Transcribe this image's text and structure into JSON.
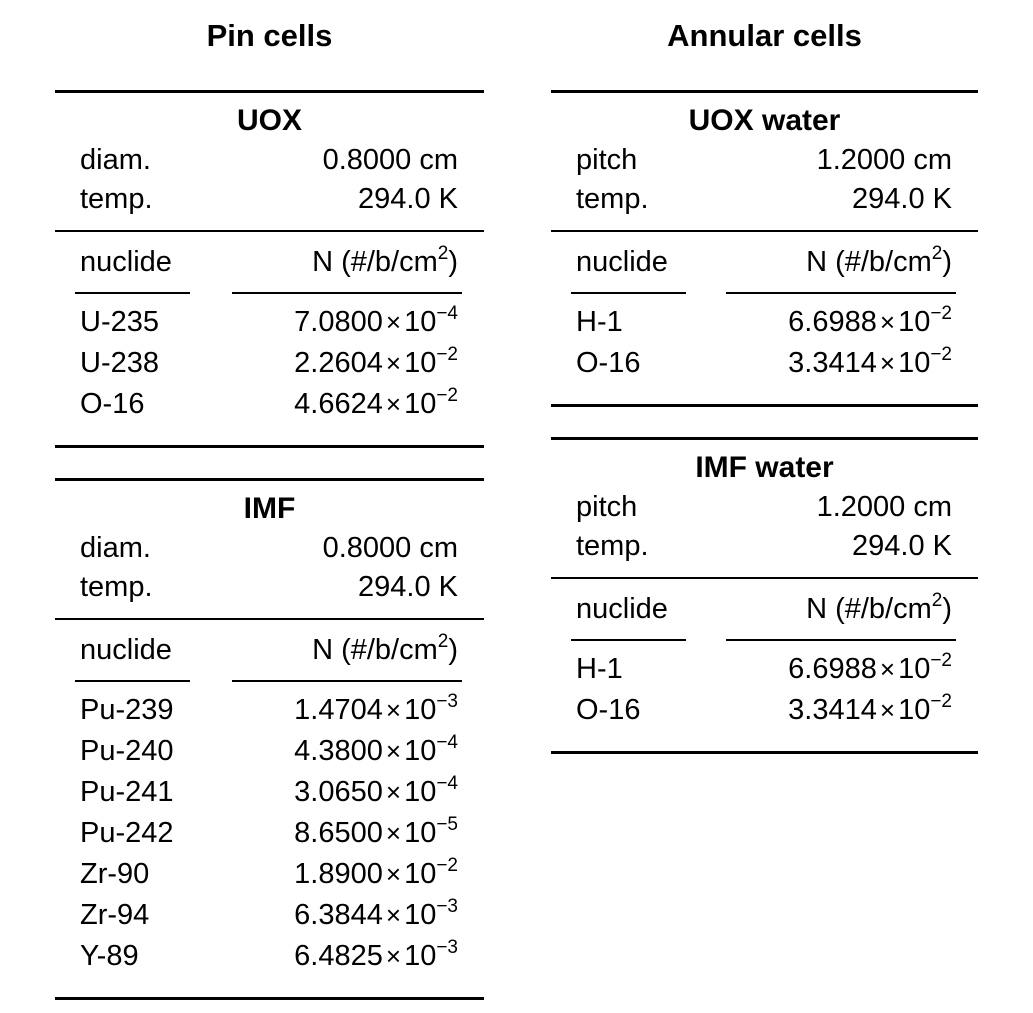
{
  "columns": {
    "left_title": "Pin cells",
    "right_title": "Annular cells"
  },
  "tables": {
    "uox": {
      "title": "UOX",
      "param1_label": "diam.",
      "param1_value": "0.8000 cm",
      "param2_label": "temp.",
      "param2_value": "294.0 K",
      "col_nuclide": "nuclide",
      "col_n": "N (#/b/cm",
      "col_n_exp": "2",
      "col_n_close": ")",
      "rows": [
        {
          "nuclide": "U-235",
          "mant": "7.0800",
          "exp": "−4"
        },
        {
          "nuclide": "U-238",
          "mant": "2.2604",
          "exp": "−2"
        },
        {
          "nuclide": "O-16",
          "mant": "4.6624",
          "exp": "−2"
        }
      ]
    },
    "imf": {
      "title": "IMF",
      "param1_label": "diam.",
      "param1_value": "0.8000 cm",
      "param2_label": "temp.",
      "param2_value": "294.0 K",
      "col_nuclide": "nuclide",
      "col_n": "N (#/b/cm",
      "col_n_exp": "2",
      "col_n_close": ")",
      "rows": [
        {
          "nuclide": "Pu-239",
          "mant": "1.4704",
          "exp": "−3"
        },
        {
          "nuclide": "Pu-240",
          "mant": "4.3800",
          "exp": "−4"
        },
        {
          "nuclide": "Pu-241",
          "mant": "3.0650",
          "exp": "−4"
        },
        {
          "nuclide": "Pu-242",
          "mant": "8.6500",
          "exp": "−5"
        },
        {
          "nuclide": "Zr-90",
          "mant": "1.8900",
          "exp": "−2"
        },
        {
          "nuclide": "Zr-94",
          "mant": "6.3844",
          "exp": "−3"
        },
        {
          "nuclide": "Y-89",
          "mant": "6.4825",
          "exp": "−3"
        }
      ]
    },
    "uox_water": {
      "title": "UOX water",
      "param1_label": "pitch",
      "param1_value": "1.2000 cm",
      "param2_label": "temp.",
      "param2_value": "294.0 K",
      "col_nuclide": "nuclide",
      "col_n": "N (#/b/cm",
      "col_n_exp": "2",
      "col_n_close": ")",
      "rows": [
        {
          "nuclide": "H-1",
          "mant": "6.6988",
          "exp": "−2"
        },
        {
          "nuclide": "O-16",
          "mant": "3.3414",
          "exp": "−2"
        }
      ]
    },
    "imf_water": {
      "title": "IMF water",
      "param1_label": "pitch",
      "param1_value": "1.2000 cm",
      "param2_label": "temp.",
      "param2_value": "294.0 K",
      "col_nuclide": "nuclide",
      "col_n": "N (#/b/cm",
      "col_n_exp": "2",
      "col_n_close": ")",
      "rows": [
        {
          "nuclide": "H-1",
          "mant": "6.6988",
          "exp": "−2"
        },
        {
          "nuclide": "O-16",
          "mant": "3.3414",
          "exp": "−2"
        }
      ]
    }
  },
  "times_symbol": "×",
  "ten": "10"
}
